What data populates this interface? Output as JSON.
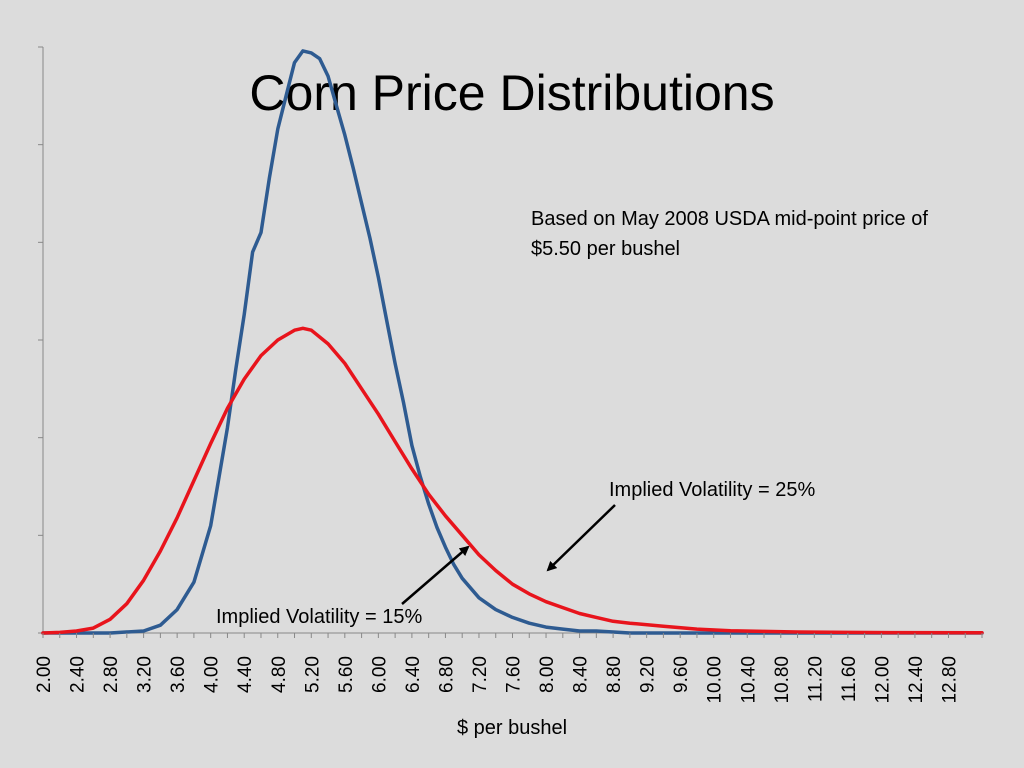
{
  "chart_data": {
    "type": "line",
    "title": "Corn Price Distributions",
    "xlabel": "$ per bushel",
    "ylabel": "",
    "x_tick_labels": [
      "2.00",
      "2.40",
      "2.80",
      "3.20",
      "3.60",
      "4.00",
      "4.40",
      "4.80",
      "5.20",
      "5.60",
      "6.00",
      "6.40",
      "6.80",
      "7.20",
      "7.60",
      "8.00",
      "8.40",
      "8.80",
      "9.20",
      "9.60",
      "10.00",
      "10.40",
      "10.80",
      "11.20",
      "11.60",
      "12.00",
      "12.40",
      "12.80"
    ],
    "xlim": [
      2.0,
      13.2
    ],
    "ylim": [
      0,
      3.0
    ],
    "y_ticks": [
      0,
      0.5,
      1.0,
      1.5,
      2.0,
      2.5,
      3.0
    ],
    "series": [
      {
        "color": "#2e5b91",
        "x": [
          2.0,
          2.4,
          2.8,
          3.2,
          3.4,
          3.6,
          3.8,
          4.0,
          4.1,
          4.2,
          4.3,
          4.4,
          4.5,
          4.6,
          4.7,
          4.8,
          4.9,
          5.0,
          5.1,
          5.2,
          5.3,
          5.4,
          5.5,
          5.6,
          5.7,
          5.8,
          5.9,
          6.0,
          6.1,
          6.2,
          6.3,
          6.4,
          6.5,
          6.6,
          6.7,
          6.8,
          6.9,
          7.0,
          7.2,
          7.4,
          7.6,
          7.8,
          8.0,
          8.2,
          8.4,
          8.6,
          8.8,
          9.0,
          9.4,
          10.0,
          11.0,
          12.0,
          13.2
        ],
        "values": [
          0,
          0,
          0,
          0.01,
          0.04,
          0.12,
          0.26,
          0.55,
          0.8,
          1.05,
          1.35,
          1.63,
          1.95,
          2.05,
          2.33,
          2.58,
          2.75,
          2.92,
          2.98,
          2.97,
          2.94,
          2.85,
          2.7,
          2.55,
          2.38,
          2.2,
          2.02,
          1.82,
          1.6,
          1.38,
          1.18,
          0.96,
          0.8,
          0.66,
          0.54,
          0.44,
          0.35,
          0.28,
          0.18,
          0.12,
          0.08,
          0.05,
          0.03,
          0.02,
          0.01,
          0.01,
          0.005,
          0,
          0,
          0,
          0,
          0,
          0
        ]
      },
      {
        "color": "#e8141c",
        "x": [
          2.0,
          2.2,
          2.4,
          2.6,
          2.8,
          3.0,
          3.2,
          3.4,
          3.6,
          3.8,
          4.0,
          4.2,
          4.4,
          4.6,
          4.8,
          5.0,
          5.1,
          5.2,
          5.4,
          5.6,
          5.8,
          6.0,
          6.2,
          6.4,
          6.6,
          6.8,
          7.0,
          7.2,
          7.4,
          7.6,
          7.8,
          8.0,
          8.2,
          8.4,
          8.6,
          8.8,
          9.0,
          9.4,
          9.8,
          10.2,
          10.6,
          11.0,
          11.6,
          12.2,
          13.2
        ],
        "values": [
          0,
          0.003,
          0.01,
          0.025,
          0.07,
          0.15,
          0.27,
          0.42,
          0.59,
          0.78,
          0.97,
          1.15,
          1.3,
          1.42,
          1.5,
          1.55,
          1.56,
          1.55,
          1.48,
          1.38,
          1.25,
          1.12,
          0.98,
          0.84,
          0.71,
          0.6,
          0.5,
          0.4,
          0.32,
          0.25,
          0.2,
          0.16,
          0.13,
          0.1,
          0.08,
          0.06,
          0.05,
          0.035,
          0.02,
          0.012,
          0.008,
          0.005,
          0.003,
          0.002,
          0.001
        ]
      }
    ],
    "annotations": [
      {
        "text": "Based on May 2008 USDA mid-point price of $5.50 per bushel"
      },
      {
        "text": "Implied Volatility = 25%"
      },
      {
        "text": "Implied Volatility = 15%"
      }
    ],
    "grid": false,
    "legend": "none"
  }
}
